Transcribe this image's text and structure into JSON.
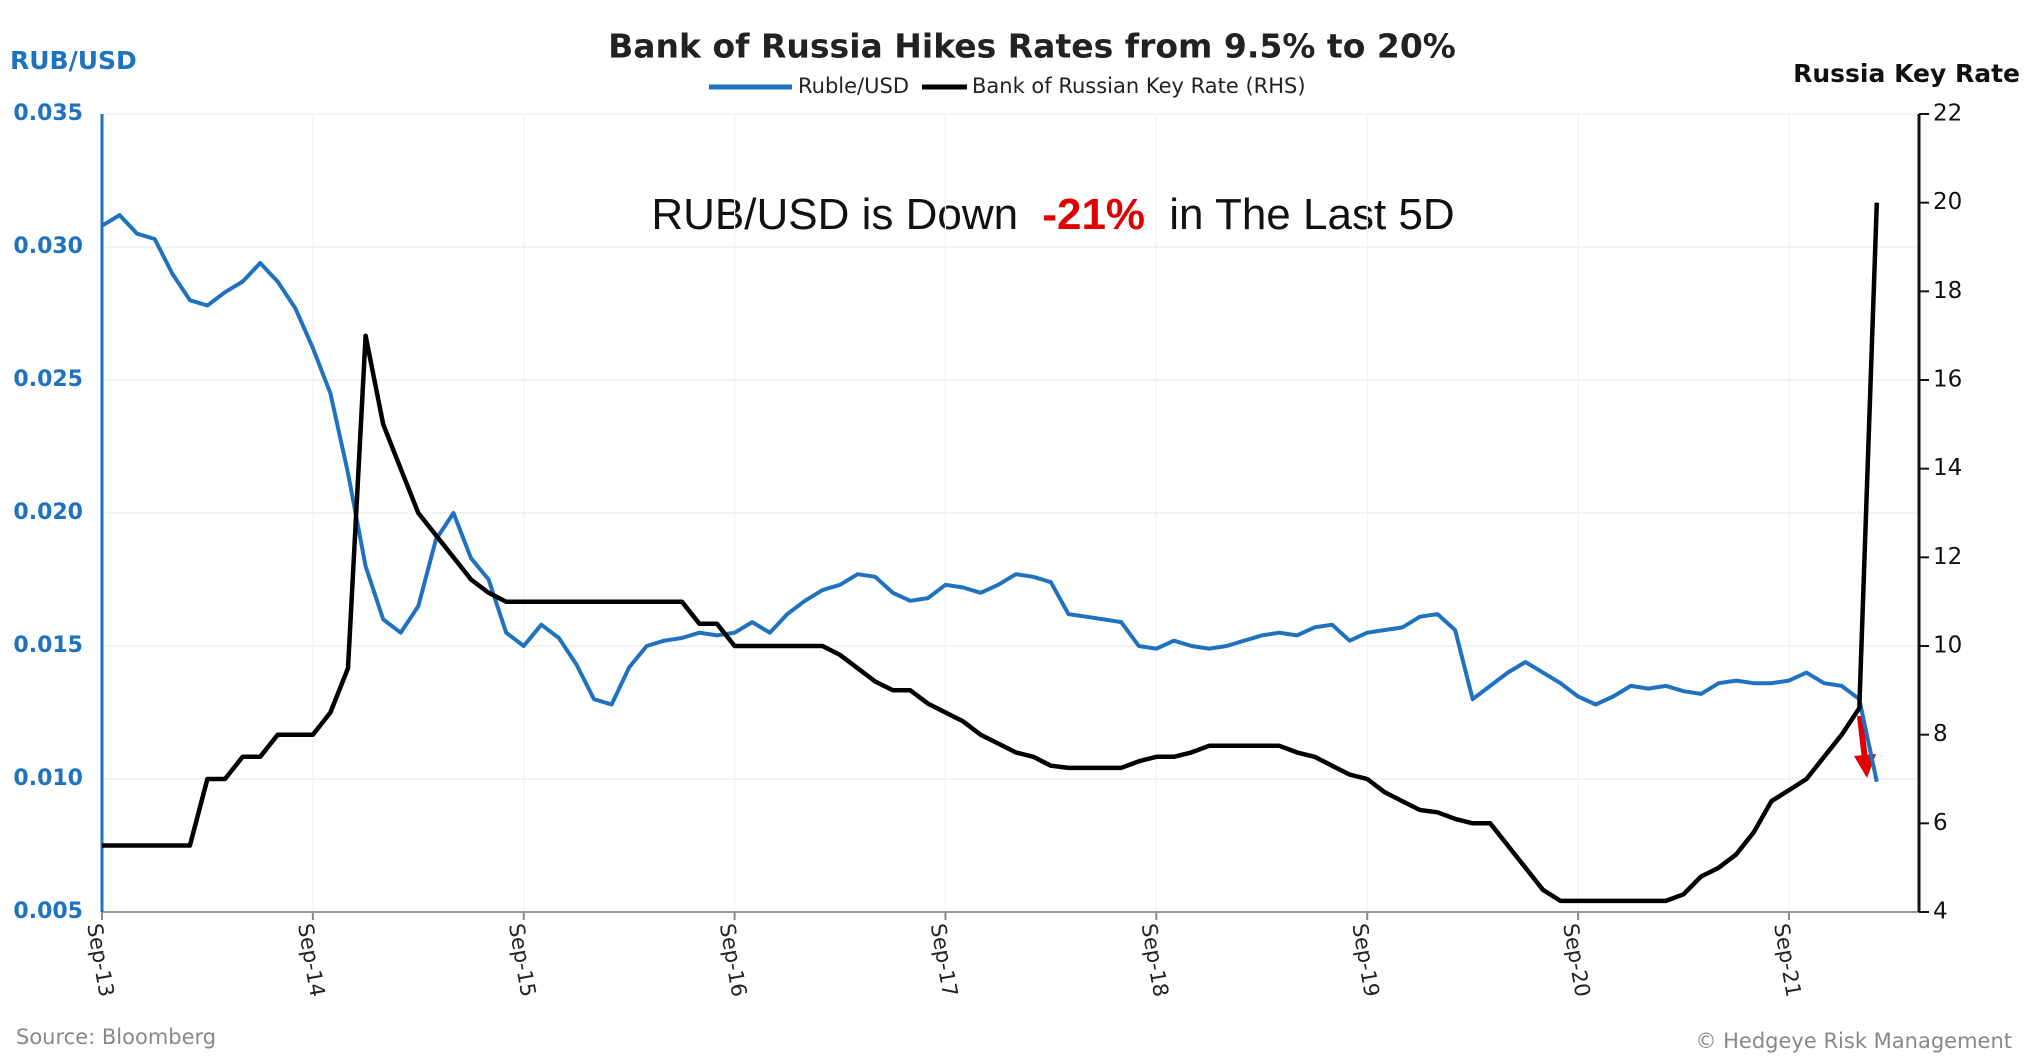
{
  "chart_data": {
    "type": "line",
    "title": "Bank of Russia Hikes Rates from 9.5% to 20%",
    "y_axis_title": "RUB/USD",
    "y2_axis_title": "Russia Key Rate",
    "annotation": [
      "RUB/USD is Down",
      "-21%",
      "in The Last 5D"
    ],
    "source": "Source: Bloomberg",
    "credit": "© Hedgeye Risk Management",
    "legend": "top",
    "grid": true,
    "categories": [
      "Sep-13",
      null,
      null,
      null,
      null,
      null,
      null,
      null,
      null,
      null,
      null,
      null,
      "Sep-14",
      null,
      null,
      null,
      null,
      null,
      null,
      null,
      null,
      null,
      null,
      null,
      "Sep-15",
      null,
      null,
      null,
      null,
      null,
      null,
      null,
      null,
      null,
      null,
      null,
      "Sep-16",
      null,
      null,
      null,
      null,
      null,
      null,
      null,
      null,
      null,
      null,
      null,
      "Sep-17",
      null,
      null,
      null,
      null,
      null,
      null,
      null,
      null,
      null,
      null,
      null,
      "Sep-18",
      null,
      null,
      null,
      null,
      null,
      null,
      null,
      null,
      null,
      null,
      null,
      "Sep-19",
      null,
      null,
      null,
      null,
      null,
      null,
      null,
      null,
      null,
      null,
      null,
      "Sep-20",
      null,
      null,
      null,
      null,
      null,
      null,
      null,
      null,
      null,
      null,
      null,
      "Sep-21",
      null,
      null,
      null,
      null,
      null
    ],
    "series": [
      {
        "name": "Ruble/USD",
        "color": "#1f72bf",
        "axis": "y",
        "values": [
          0.0308,
          0.0312,
          0.0305,
          0.0303,
          0.029,
          0.028,
          0.0278,
          0.0283,
          0.0287,
          0.0294,
          0.0287,
          0.0277,
          0.0262,
          0.0245,
          0.0215,
          0.018,
          0.016,
          0.0155,
          0.0165,
          0.019,
          0.02,
          0.0183,
          0.0175,
          0.0155,
          0.015,
          0.0158,
          0.0153,
          0.0143,
          0.013,
          0.0128,
          0.0142,
          0.015,
          0.0152,
          0.0153,
          0.0155,
          0.0154,
          0.0155,
          0.0159,
          0.0155,
          0.0162,
          0.0167,
          0.0171,
          0.0173,
          0.0177,
          0.0176,
          0.017,
          0.0167,
          0.0168,
          0.0173,
          0.0172,
          0.017,
          0.0173,
          0.0177,
          0.0176,
          0.0174,
          0.0162,
          0.0161,
          0.016,
          0.0159,
          0.015,
          0.0149,
          0.0152,
          0.015,
          0.0149,
          0.015,
          0.0152,
          0.0154,
          0.0155,
          0.0154,
          0.0157,
          0.0158,
          0.0152,
          0.0155,
          0.0156,
          0.0157,
          0.0161,
          0.0162,
          0.0156,
          0.013,
          0.0135,
          0.014,
          0.0144,
          0.014,
          0.0136,
          0.0131,
          0.0128,
          0.0131,
          0.0135,
          0.0134,
          0.0135,
          0.0133,
          0.0132,
          0.0136,
          0.0137,
          0.0136,
          0.0136,
          0.0137,
          0.014,
          0.0136,
          0.0135,
          0.013,
          0.0099
        ]
      },
      {
        "name": "Bank of Russian Key Rate (RHS)",
        "color": "#000000",
        "axis": "y2",
        "values": [
          5.5,
          5.5,
          5.5,
          5.5,
          5.5,
          5.5,
          7.0,
          7.0,
          7.5,
          7.5,
          8.0,
          8.0,
          8.0,
          8.5,
          9.5,
          17,
          15,
          14,
          13,
          12.5,
          12,
          11.5,
          11.2,
          11,
          11,
          11,
          11,
          11,
          11,
          11,
          11,
          11,
          11,
          11,
          10.5,
          10.5,
          10,
          10,
          10,
          10,
          10,
          10,
          9.8,
          9.5,
          9.2,
          9,
          9,
          8.7,
          8.5,
          8.3,
          8,
          7.8,
          7.6,
          7.5,
          7.3,
          7.25,
          7.25,
          7.25,
          7.25,
          7.4,
          7.5,
          7.5,
          7.6,
          7.75,
          7.75,
          7.75,
          7.75,
          7.75,
          7.6,
          7.5,
          7.3,
          7.1,
          7,
          6.7,
          6.5,
          6.3,
          6.25,
          6.1,
          6,
          6,
          5.5,
          5,
          4.5,
          4.25,
          4.25,
          4.25,
          4.25,
          4.25,
          4.25,
          4.25,
          4.4,
          4.8,
          5,
          5.3,
          5.8,
          6.5,
          6.75,
          7,
          7.5,
          8,
          8.6,
          20
        ]
      }
    ],
    "ylim": [
      0.005,
      0.035
    ],
    "yticks": [
      0.005,
      {
        "value": 0.01,
        "label": "0.010"
      },
      0.015,
      {
        "value": 0.02,
        "label": "0.020"
      },
      0.025,
      {
        "value": 0.03,
        "label": "0.030"
      },
      0.035
    ],
    "y2lim": [
      4,
      22
    ],
    "y2ticks": [
      4,
      6,
      8,
      10,
      12,
      14,
      16,
      18,
      20,
      22
    ]
  }
}
